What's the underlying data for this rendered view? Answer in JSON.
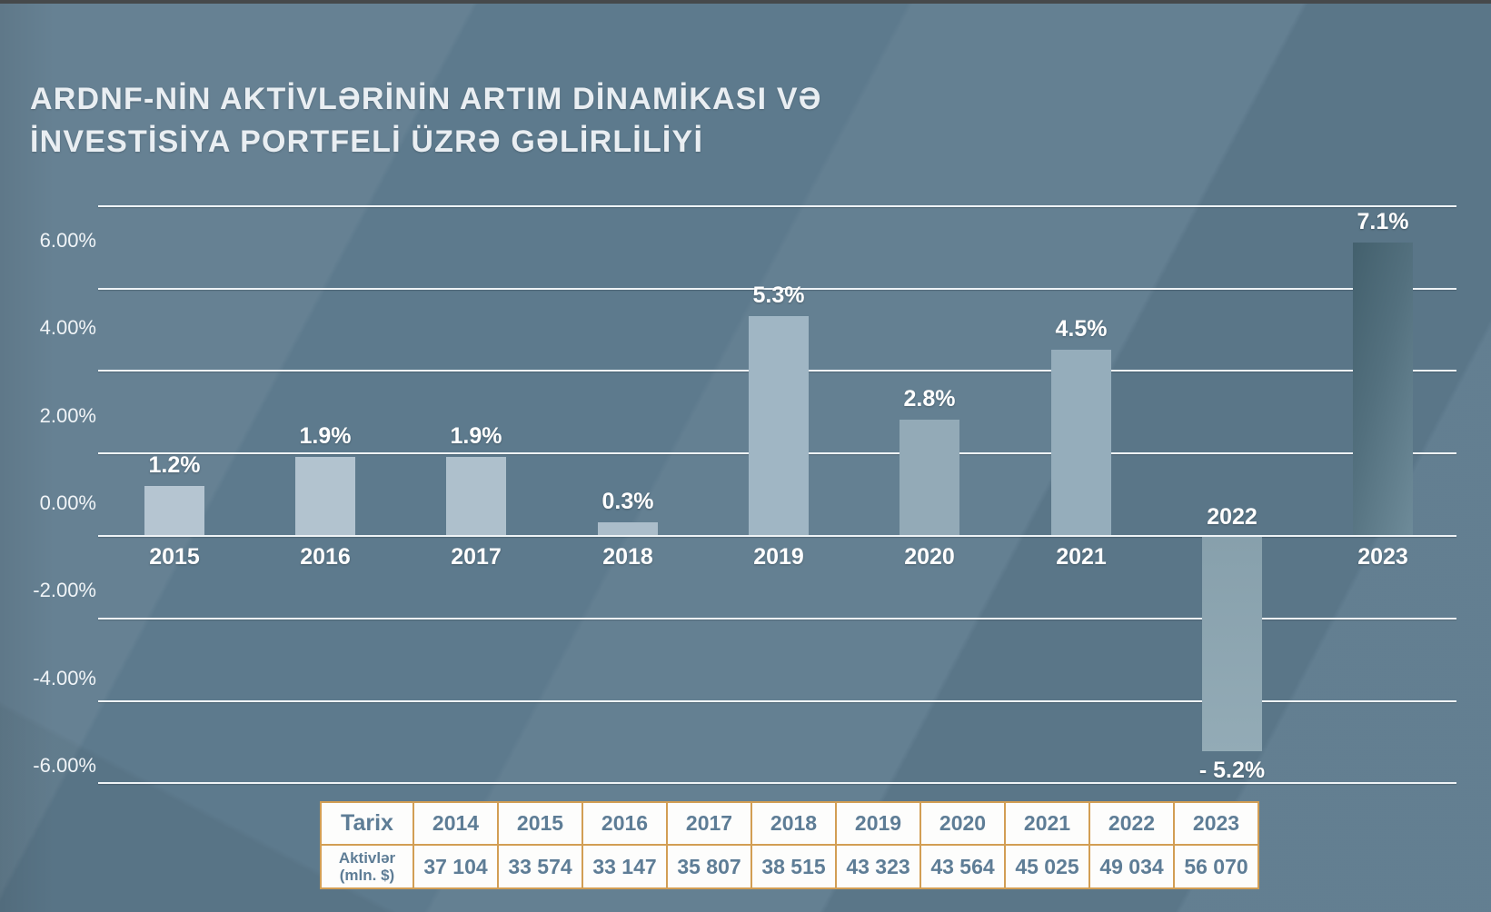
{
  "title": {
    "line1": "ARDNF-NİN AKTİVLƏRİNİN ARTIM DİNAMİKASI VƏ",
    "line2": "İNVESTİSİYA PORTFELİ ÜZRƏ GƏLİRLİLİYİ"
  },
  "chart_data": {
    "type": "bar",
    "title": "ARDNF-nin aktivlərinin artım dinamikası və investisiya portfeli üzrə gəlirliliyi",
    "categories": [
      "2015",
      "2016",
      "2017",
      "2018",
      "2019",
      "2020",
      "2021",
      "2022",
      "2023"
    ],
    "values": [
      1.2,
      1.9,
      1.9,
      0.3,
      5.3,
      2.8,
      4.5,
      -5.2,
      7.1
    ],
    "value_labels": [
      "1.2%",
      "1.9%",
      "1.9%",
      "0.3%",
      "5.3%",
      "2.8%",
      "4.5%",
      "- 5.2%",
      "7.1%"
    ],
    "xlabel": "",
    "ylabel": "",
    "ylim": [
      -6,
      8
    ],
    "grid": "on",
    "grid_values": [
      8,
      6,
      4,
      2,
      0,
      -2,
      -4,
      -6
    ],
    "y_ticks": [
      {
        "value": 6,
        "label": "6.00%"
      },
      {
        "value": 4,
        "label": "4.00%"
      },
      {
        "value": 2,
        "label": "2.00%"
      },
      {
        "value": 0,
        "label": "0.00%"
      },
      {
        "value": -2,
        "label": "-2.00%"
      },
      {
        "value": -4,
        "label": "-4.00%"
      },
      {
        "value": -6,
        "label": "-6.00%"
      }
    ],
    "legend": "none",
    "bar_colors": [
      "#b5c5d1",
      "#b2c3cf",
      "#aec0cc",
      "#abbdca",
      "#a0b6c4",
      "#93aab7",
      "#95adbb",
      "linear-gradient(180deg,#87a0ac,#93abb6)",
      "linear-gradient(105deg,#43606d 0%,#53707e 45%,#6e8b99 100%)"
    ],
    "gridline_color": "#eef3f6",
    "label_color": "#ffffff",
    "background_color": "#5d7a8d"
  },
  "table": {
    "header": [
      "Tarix",
      "2014",
      "2015",
      "2016",
      "2017",
      "2018",
      "2019",
      "2020",
      "2021",
      "2022",
      "2023"
    ],
    "row_label": [
      "Aktivlər",
      "(mln. $)"
    ],
    "values": [
      "37 104",
      "33 574",
      "33 147",
      "35 807",
      "38 515",
      "43 323",
      "43 564",
      "45 025",
      "49 034",
      "56 070"
    ],
    "border_color": "#d29e54",
    "text_color": "#5e7d96",
    "cell_background": "#fdfdfc"
  }
}
